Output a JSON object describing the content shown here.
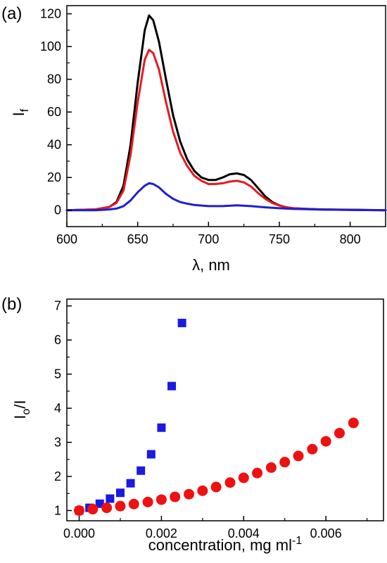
{
  "chart_data": [
    {
      "type": "line",
      "panel_label": "(a)",
      "xlabel": "λ, nm",
      "ylabel_main": "I",
      "ylabel_sub": "f",
      "xlim": [
        600,
        825
      ],
      "ylim": [
        -10,
        125
      ],
      "xticks": [
        600,
        650,
        700,
        750,
        800
      ],
      "yticks": [
        0,
        20,
        40,
        60,
        80,
        100,
        120
      ],
      "grid": false,
      "series": [
        {
          "color": "#000000",
          "x": [
            600,
            620,
            630,
            635,
            640,
            645,
            650,
            655,
            658,
            661,
            665,
            670,
            675,
            680,
            685,
            690,
            695,
            700,
            705,
            710,
            715,
            720,
            725,
            730,
            735,
            740,
            745,
            750,
            755,
            760,
            770,
            780,
            800,
            825
          ],
          "y": [
            0,
            0.5,
            2,
            5,
            15,
            40,
            78,
            110,
            119,
            116,
            103,
            80,
            58,
            42,
            31,
            24,
            20,
            18.5,
            18.5,
            20,
            22,
            22.5,
            21.5,
            18.5,
            13.5,
            8.5,
            5,
            3,
            1.8,
            1.2,
            0.8,
            0.5,
            0.3,
            0
          ]
        },
        {
          "color": "#e8191e",
          "x": [
            600,
            620,
            630,
            635,
            640,
            645,
            650,
            655,
            658,
            661,
            665,
            670,
            675,
            680,
            685,
            690,
            695,
            700,
            705,
            710,
            715,
            720,
            725,
            730,
            735,
            740,
            745,
            750,
            755,
            760,
            770,
            780,
            800,
            825
          ],
          "y": [
            0,
            0.5,
            2,
            4.5,
            12,
            34,
            66,
            92,
            98,
            96,
            86,
            66,
            48,
            35,
            27,
            21,
            18,
            16,
            16,
            16.5,
            17.5,
            18,
            17,
            14.5,
            10.5,
            7,
            4.5,
            2.8,
            1.8,
            1.2,
            0.7,
            0.4,
            0.2,
            0
          ]
        },
        {
          "color": "#1f1fd1",
          "x": [
            600,
            620,
            630,
            635,
            640,
            645,
            650,
            655,
            658,
            661,
            665,
            670,
            675,
            680,
            685,
            690,
            700,
            710,
            720,
            730,
            740,
            750,
            760,
            780,
            800,
            825
          ],
          "y": [
            0,
            0,
            0.5,
            1,
            2.5,
            6,
            11,
            15,
            16.5,
            16,
            14,
            10,
            7,
            5,
            4,
            3.2,
            2.5,
            2.5,
            3,
            2.5,
            1.8,
            1.2,
            0.8,
            0.4,
            0.2,
            0
          ]
        }
      ]
    },
    {
      "type": "scatter",
      "panel_label": "(b)",
      "xlabel_main": "concentration, mg ml",
      "xlabel_sup": "-1",
      "ylabel_main": "I",
      "ylabel_sub": "o",
      "ylabel_tail": "/I",
      "xlim": [
        -0.0003,
        0.0074
      ],
      "ylim": [
        0.7,
        7.2
      ],
      "xticks": [
        "0.000",
        "0.002",
        "0.004",
        "0.006"
      ],
      "xtick_values": [
        0,
        0.002,
        0.004,
        0.006
      ],
      "yticks": [
        1,
        2,
        3,
        4,
        5,
        6,
        7
      ],
      "grid": false,
      "series": [
        {
          "marker": "square",
          "color": "#1a1ae0",
          "x": [
            0.0,
            0.00025,
            0.0005,
            0.00075,
            0.001,
            0.00125,
            0.0015,
            0.00175,
            0.002,
            0.00225,
            0.0025
          ],
          "y": [
            1.0,
            1.08,
            1.2,
            1.35,
            1.52,
            1.8,
            2.17,
            2.65,
            3.43,
            4.65,
            6.5
          ]
        },
        {
          "marker": "circle",
          "color": "#ee1111",
          "x": [
            0.0,
            0.00033,
            0.00067,
            0.001,
            0.00133,
            0.00167,
            0.002,
            0.00233,
            0.00267,
            0.003,
            0.00333,
            0.00367,
            0.004,
            0.00433,
            0.00467,
            0.005,
            0.00533,
            0.00567,
            0.006,
            0.00633,
            0.00667
          ],
          "y": [
            1.0,
            1.04,
            1.08,
            1.13,
            1.19,
            1.25,
            1.32,
            1.4,
            1.48,
            1.58,
            1.69,
            1.82,
            1.96,
            2.1,
            2.26,
            2.42,
            2.6,
            2.8,
            3.03,
            3.27,
            3.57
          ]
        }
      ]
    }
  ]
}
